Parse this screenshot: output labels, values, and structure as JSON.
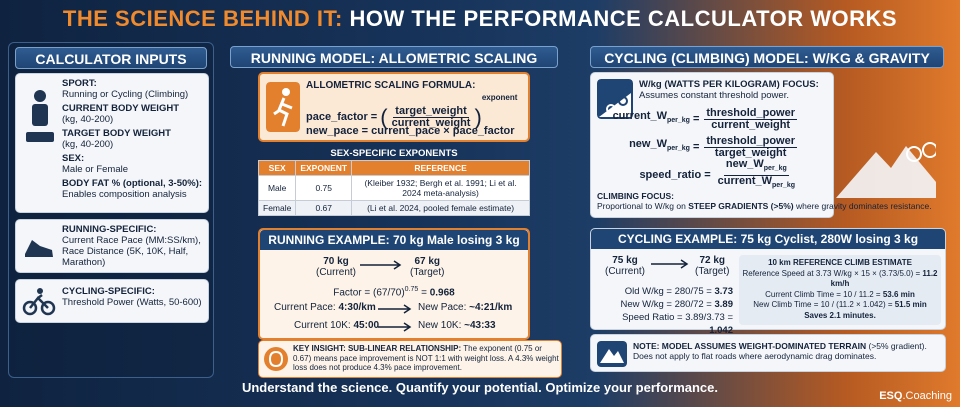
{
  "header": {
    "title_highlight": "THE SCIENCE BEHIND IT:",
    "title_rest": "HOW THE PERFORMANCE CALCULATOR WORKS"
  },
  "inputs": {
    "heading": "CALCULATOR INPUTS",
    "fields": [
      {
        "label": "SPORT:",
        "detail": "Running or Cycling (Climbing)"
      },
      {
        "label": "CURRENT BODY WEIGHT",
        "detail": "(kg, 40-200)"
      },
      {
        "label": "TARGET BODY WEIGHT",
        "detail": "(kg, 40-200)"
      },
      {
        "label": "SEX:",
        "detail": "Male or Female"
      },
      {
        "label": "BODY FAT % (optional, 3-50%):",
        "detail": "Enables composition analysis"
      }
    ],
    "running": {
      "label": "RUNNING-SPECIFIC:",
      "detail": "Current Race Pace (MM:SS/km), Race Distance (5K, 10K, Half, Marathon)"
    },
    "cycling": {
      "label": "CYCLING-SPECIFIC:",
      "detail": "Threshold Power (Watts, 50-600)"
    }
  },
  "running_model": {
    "heading": "RUNNING MODEL: ALLOMETRIC SCALING",
    "formula": {
      "title": "ALLOMETRIC SCALING FORMULA:",
      "lhs": "pace_factor =",
      "open": "(",
      "numerator": "target_weight",
      "denominator": "current_weight",
      "close": ")",
      "exponent": "exponent",
      "new_pace": "new_pace = current_pace × pace_factor"
    },
    "exponents": {
      "heading": "SEX-SPECIFIC EXPONENTS",
      "columns": [
        "SEX",
        "EXPONENT",
        "REFERENCE"
      ],
      "rows": [
        [
          "Male",
          "0.75",
          "(Kleiber 1932; Bergh et al. 1991; Li et al. 2024 meta-analysis)"
        ],
        [
          "Female",
          "0.67",
          "(Li et al. 2024, pooled female estimate)"
        ]
      ]
    },
    "example": {
      "heading": "RUNNING EXAMPLE: 70 kg Male losing 3 kg",
      "current_weight": "70 kg",
      "current_caption": "(Current)",
      "target_weight": "67 kg",
      "target_caption": "(Target)",
      "factor_expr": "Factor = (67/70)",
      "factor_exp": "0.75",
      "factor_eq": " = ",
      "factor_value": "0.968",
      "current_pace_label": "Current Pace: ",
      "current_pace": "4:30/km",
      "new_pace_label": "New Pace: ",
      "new_pace": "~4:21/km",
      "current_10k_label": "Current 10K: ",
      "current_10k": "45:00",
      "new_10k_label": "New 10K: ",
      "new_10k": "~43:33"
    },
    "insight": {
      "title": "KEY INSIGHT: SUB-LINEAR RELATIONSHIP:",
      "text": " The exponent (0.75 or 0.67) means pace improvement is NOT 1:1 with weight loss. A 4.3% weight loss does not produce 4.3% pace improvement."
    }
  },
  "cycling_model": {
    "heading": "CYCLING (CLIMBING) MODEL: W/KG & GRAVITY",
    "focus": {
      "title": "W/kg (WATTS PER KILOGRAM) FOCUS:",
      "subtitle": "Assumes constant threshold power."
    },
    "equals": "=",
    "subscript": "per_kg",
    "formulas": [
      {
        "lhs": "current_W",
        "numerator": "threshold_power",
        "denominator": "current_weight"
      },
      {
        "lhs": "new_W",
        "numerator": "threshold_power",
        "denominator": "target_weight"
      },
      {
        "lhs": "speed_ratio",
        "numerator": "new_W",
        "denominator": "current_W"
      }
    ],
    "climbing": {
      "title": "CLIMBING FOCUS:",
      "text": "Proportional to W/kg on ",
      "emphasis": "STEEP GRADIENTS (>5%)",
      "text_end": " where gravity dominates resistance."
    },
    "example": {
      "heading": "CYCLING EXAMPLE: 75 kg Cyclist, 280W losing 3 kg",
      "current_weight": "75 kg",
      "current_caption": "(Current)",
      "target_weight": "72 kg",
      "target_caption": "(Target)",
      "old_wkg_label": "Old W/kg = 280/75 = ",
      "old_wkg": "3.73",
      "new_wkg_label": "New W/kg = 280/72 = ",
      "new_wkg": "3.89",
      "ratio_label": "Speed Ratio = 3.89/3.73 = ",
      "ratio": "1.042",
      "climb": {
        "title": "10 km REFERENCE CLIMB ESTIMATE",
        "ref_speed_label": "Reference Speed at 3.73 W/kg × 15 × (3.73/5.0) = ",
        "ref_speed": "11.2 km/h",
        "current_time_label": "Current Climb Time = 10 / 11.2 = ",
        "current_time": "53.6 min",
        "new_time_label": "New Climb Time = 10 / (11.2 × 1.042) = ",
        "new_time": "51.5 min",
        "saves": "Saves 2.1 minutes."
      }
    },
    "note": {
      "title": "NOTE: MODEL ASSUMES WEIGHT-DOMINATED TERRAIN",
      "text": " (>5% gradient). Does not apply to flat roads where aerodynamic drag dominates."
    }
  },
  "footer": {
    "tagline": "Understand the science. Quantify your potential. Optimize your performance.",
    "brand": "ESQ",
    "brand_suffix": ".Coaching"
  }
}
